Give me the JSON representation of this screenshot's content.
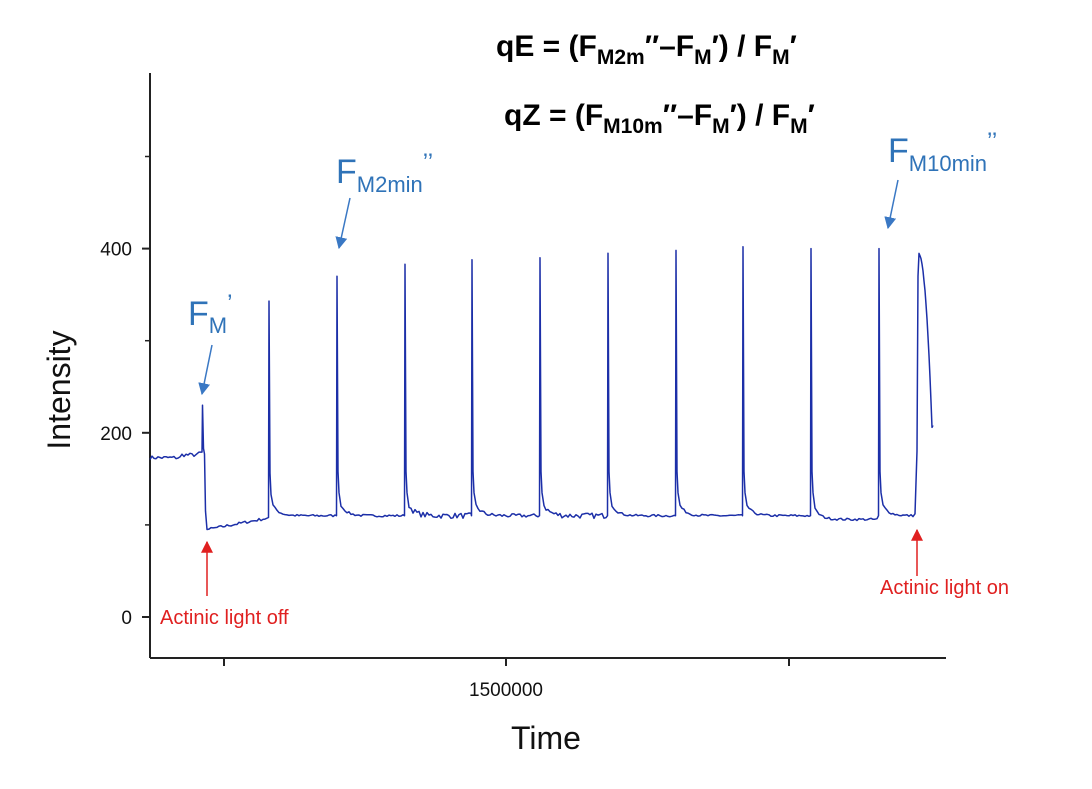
{
  "formulas": {
    "qe": {
      "lhs": "qE",
      "eq": " = (",
      "f1": "F",
      "f1_sub": "M2m",
      "mid": "″–",
      "f2": "F",
      "f2_sub": "M",
      "after2": "′) / ",
      "f3": "F",
      "f3_sub": "M",
      "end": "′"
    },
    "qz": {
      "lhs": "qZ",
      "eq": " = (",
      "f1": "F",
      "f1_sub": "M10m",
      "mid": "″–",
      "f2": "F",
      "f2_sub": "M",
      "after2": "′) / ",
      "f3": "F",
      "f3_sub": "M",
      "end": "′"
    }
  },
  "chart_data": {
    "type": "line",
    "title": "",
    "xlabel": "Time",
    "ylabel": "Intensity",
    "ylim": [
      -50,
      590
    ],
    "yticks": [
      0,
      200,
      400
    ],
    "xticks": [
      1500000
    ],
    "x_unlabeled_ticks": 3,
    "grid": false,
    "series": [
      {
        "color": "#1c2fa8",
        "baseline_dark": 173,
        "post_off_min": 95,
        "baseline_recovered": 110,
        "pulse_peaks": [
          230,
          343,
          370,
          383,
          388,
          390,
          395,
          398,
          402,
          400,
          400,
          395
        ],
        "final_value": 208
      }
    ],
    "annotations": {
      "fm_prime": {
        "text": "F",
        "sub": "M",
        "sup": "’"
      },
      "fm2min": {
        "text": "F",
        "sub": "M2min",
        "sup": "’’"
      },
      "fm10min": {
        "text": "F",
        "sub": "M10min",
        "sup": "’’"
      },
      "light_off": "Actinic light off",
      "light_on": "Actinic light on"
    },
    "colors": {
      "trace": "#1c2fa8",
      "label_blue": "#2f73b8",
      "arrow_blue": "#3a78c4",
      "arrow_red": "#e02020"
    }
  }
}
